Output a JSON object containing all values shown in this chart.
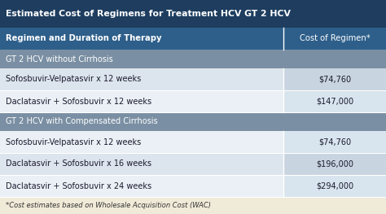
{
  "title": "Estimated Cost of Regimens for Treatment HCV GT 2 HCV",
  "title_bg": "#1e3d5f",
  "title_color": "#ffffff",
  "header_col1": "Regimen and Duration of Therapy",
  "header_col2": "Cost of Regimen*",
  "header_bg": "#2e5f8a",
  "header_color": "#ffffff",
  "section_bg": "#7a8fa3",
  "section_color": "#ffffff",
  "row_bg_light": "#dce4ed",
  "row_bg_lighter": "#eaf0f5",
  "footnote_bg": "#f0ead8",
  "footnote_text": "*Cost estimates based on Wholesale Acquisition Cost (WAC)",
  "footnote_color": "#333333",
  "col_split": 0.735,
  "text_color_data": "#1a1a2e",
  "rows": [
    {
      "type": "section",
      "col1": "GT 2 HCV without Cirrhosis",
      "col2": ""
    },
    {
      "type": "data",
      "col1": "Sofosbuvir-Velpatasvir x 12 weeks",
      "col2": "$74,760",
      "shade": "light"
    },
    {
      "type": "data",
      "col1": "Daclatasvir + Sofosbuvir x 12 weeks",
      "col2": "$147,000",
      "shade": "lighter"
    },
    {
      "type": "section",
      "col1": "GT 2 HCV with Compensated Cirrhosis",
      "col2": ""
    },
    {
      "type": "data",
      "col1": "Sofosbuvir-Velpatasvir x 12 weeks",
      "col2": "$74,760",
      "shade": "lighter"
    },
    {
      "type": "data",
      "col1": "Daclatasvir + Sofosbuvir x 16 weeks",
      "col2": "$196,000",
      "shade": "light"
    },
    {
      "type": "data",
      "col1": "Daclatasvir + Sofosbuvir x 24 weeks",
      "col2": "$294,000",
      "shade": "lighter"
    }
  ]
}
